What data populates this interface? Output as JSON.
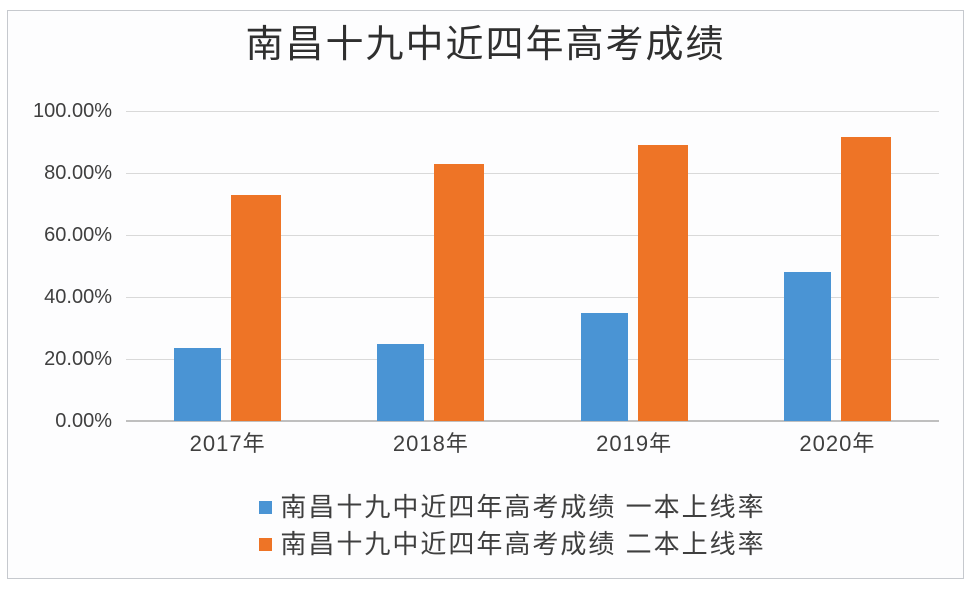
{
  "chart_data": {
    "type": "bar",
    "title": "南昌十九中近四年高考成绩",
    "categories": [
      "2017年",
      "2018年",
      "2019年",
      "2020年"
    ],
    "series": [
      {
        "name": "南昌十九中近四年高考成绩 一本上线率",
        "color": "#4a94d4",
        "values": [
          23.5,
          25,
          35,
          48
        ]
      },
      {
        "name": "南昌十九中近四年高考成绩 二本上线率",
        "color": "#ee7426",
        "values": [
          73,
          83,
          89,
          91.5
        ]
      }
    ],
    "ylim": [
      0,
      100
    ],
    "yticks": [
      {
        "value": 0,
        "label": "0.00%"
      },
      {
        "value": 20,
        "label": "20.00%"
      },
      {
        "value": 40,
        "label": "40.00%"
      },
      {
        "value": 60,
        "label": "60.00%"
      },
      {
        "value": 80,
        "label": "80.00%"
      },
      {
        "value": 100,
        "label": "100.00%"
      }
    ],
    "grid": true,
    "legend_position": "bottom",
    "unit": "percent"
  },
  "colors": {
    "series_blue": "#4a94d4",
    "series_orange": "#ee7426",
    "gridline": "#d9d9d9",
    "axis_line": "#bfbfbf",
    "frame_border": "#c6c9ce",
    "text": "#3f3f3f",
    "background": "#fdfdfe"
  }
}
